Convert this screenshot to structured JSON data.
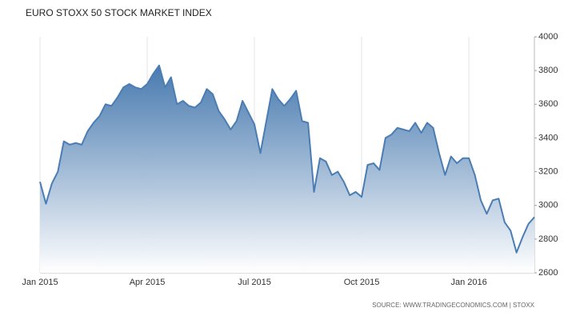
{
  "chart_data": {
    "type": "area",
    "title": "EURO STOXX 50 STOCK MARKET INDEX",
    "source": "SOURCE: WWW.TRADINGECONOMICS.COM | STOXX",
    "categories": [
      "Jan 2015",
      null,
      null,
      null,
      null,
      null,
      null,
      null,
      null,
      null,
      null,
      null,
      null,
      null,
      null,
      null,
      null,
      null,
      "Apr 2015",
      null,
      null,
      null,
      null,
      null,
      null,
      null,
      null,
      null,
      null,
      null,
      null,
      null,
      null,
      null,
      null,
      null,
      "Jul 2015",
      null,
      null,
      null,
      null,
      null,
      null,
      null,
      null,
      null,
      null,
      null,
      null,
      null,
      null,
      null,
      null,
      null,
      "Oct 2015",
      null,
      null,
      null,
      null,
      null,
      null,
      null,
      null,
      null,
      null,
      null,
      null,
      null,
      null,
      null,
      null,
      null,
      "Jan 2016",
      null,
      null,
      null,
      null,
      null,
      null,
      null,
      null,
      null,
      null,
      null
    ],
    "values": [
      3140,
      3010,
      3130,
      3200,
      3380,
      3360,
      3370,
      3360,
      3440,
      3490,
      3530,
      3600,
      3590,
      3640,
      3700,
      3720,
      3700,
      3690,
      3720,
      3780,
      3830,
      3700,
      3760,
      3600,
      3620,
      3590,
      3580,
      3610,
      3690,
      3660,
      3560,
      3510,
      3450,
      3500,
      3620,
      3550,
      3480,
      3310,
      3500,
      3690,
      3630,
      3590,
      3630,
      3680,
      3500,
      3490,
      3080,
      3280,
      3260,
      3180,
      3200,
      3140,
      3060,
      3080,
      3050,
      3240,
      3250,
      3210,
      3400,
      3420,
      3460,
      3450,
      3440,
      3490,
      3430,
      3490,
      3460,
      3310,
      3180,
      3290,
      3250,
      3280,
      3280,
      3180,
      3030,
      2950,
      3030,
      3040,
      2900,
      2850,
      2720,
      2810,
      2890,
      2930
    ],
    "color": "#4a7db4",
    "ylim": [
      2600,
      4000
    ],
    "yticks": [
      2600,
      2800,
      3000,
      3200,
      3400,
      3600,
      3800,
      4000
    ],
    "grid": "x",
    "y_axis_side": "right"
  }
}
